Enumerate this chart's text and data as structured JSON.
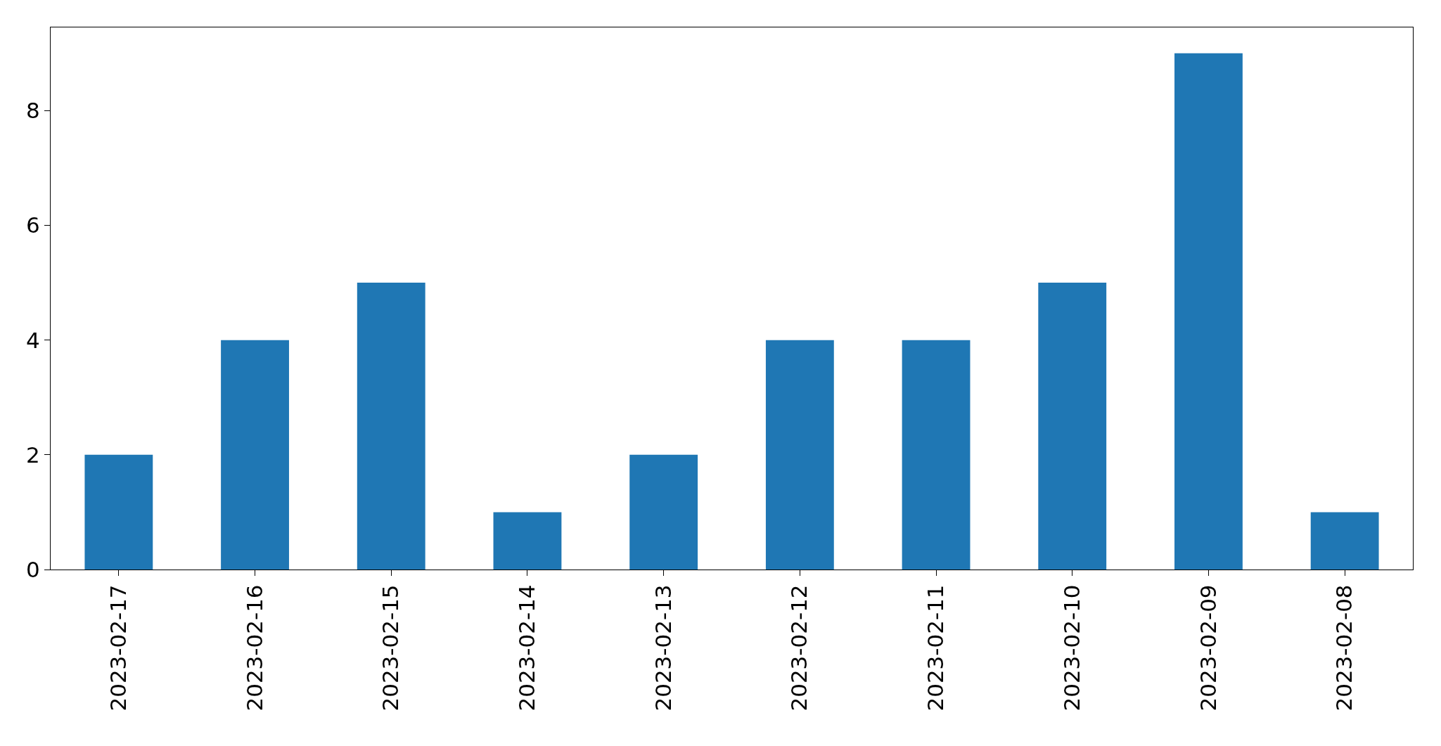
{
  "chart_data": {
    "type": "bar",
    "categories": [
      "2023-02-17",
      "2023-02-16",
      "2023-02-15",
      "2023-02-14",
      "2023-02-13",
      "2023-02-12",
      "2023-02-11",
      "2023-02-10",
      "2023-02-09",
      "2023-02-08"
    ],
    "values": [
      2,
      4,
      5,
      1,
      2,
      4,
      4,
      5,
      9,
      1
    ],
    "color": "#1f77b4",
    "ylim": [
      0,
      9.45
    ],
    "yticks": [
      0,
      2,
      4,
      6,
      8
    ]
  }
}
